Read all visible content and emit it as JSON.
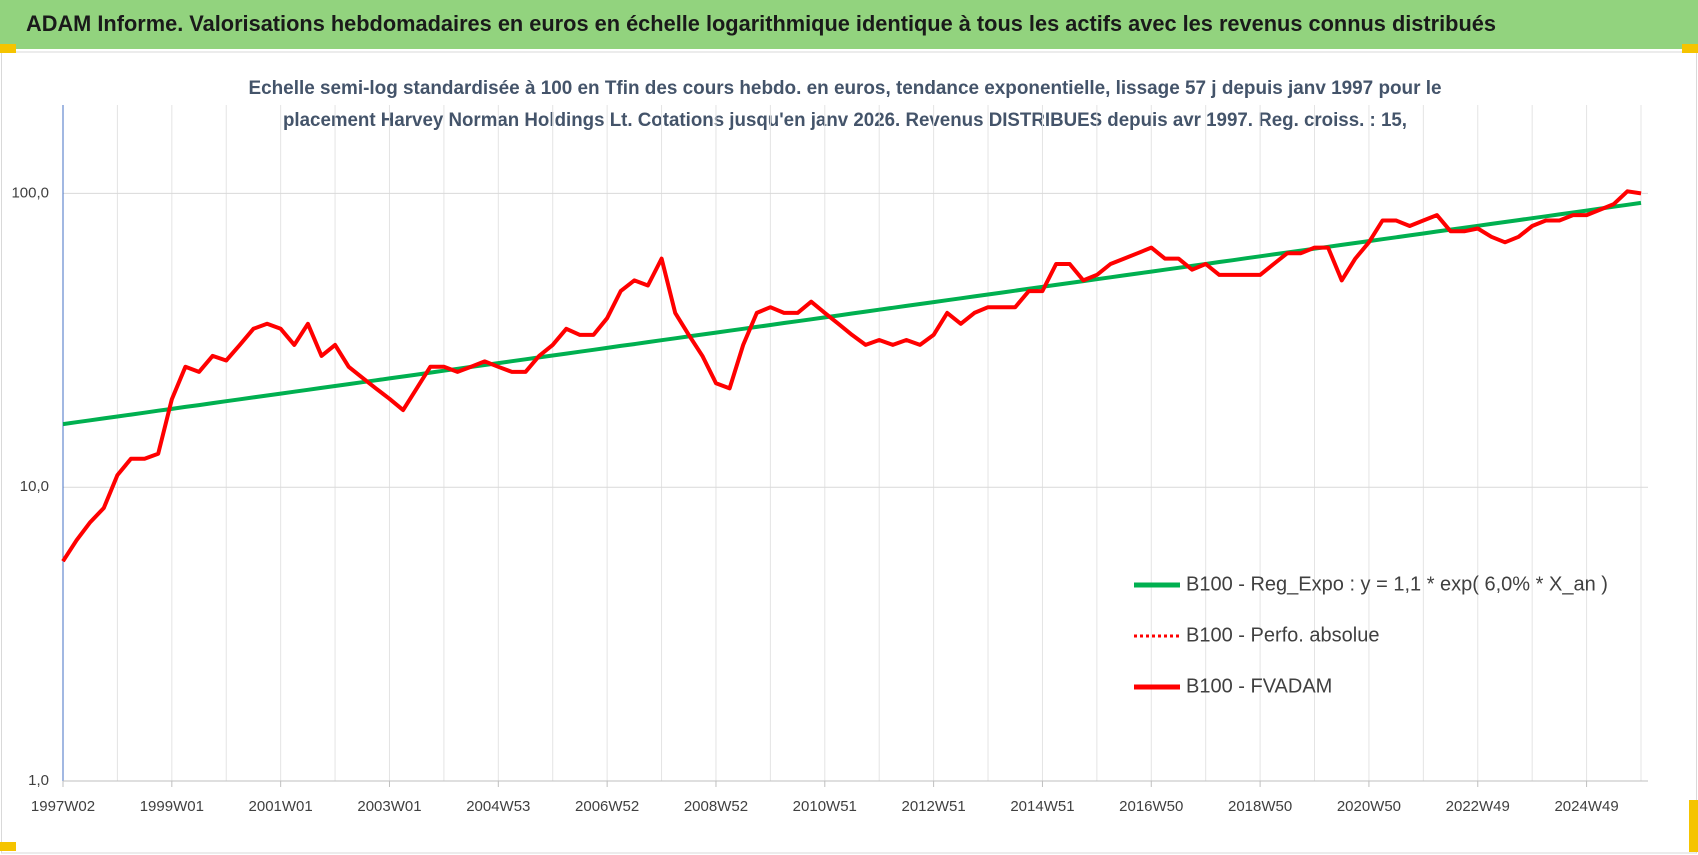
{
  "header": {
    "title": "ADAM Informe. Valorisations hebdomadaires en euros en échelle logarithmique identique à tous les actifs avec les revenus connus distribués"
  },
  "chart_data": {
    "type": "line",
    "subtitle_lines": [
      "Echelle semi-log standardisée à 100 en Tfin des cours hebdo. en euros, tendance exponentielle, lissage 57 j depuis janv 1997 pour le",
      "placement Harvey Norman Holdings Lt. Cotations jusqu'en janv 2026. Revenus DISTRIBUES depuis avr 1997. Reg. croiss. : 15,"
    ],
    "log_scale": true,
    "grid": true,
    "legend": "right",
    "ylim": [
      1,
      200
    ],
    "yticks": [
      {
        "value": 1,
        "label": "1,0"
      },
      {
        "value": 10,
        "label": "10,0"
      },
      {
        "value": 100,
        "label": "100,0"
      }
    ],
    "categories": [
      "1997W02",
      null,
      null,
      null,
      null,
      null,
      null,
      null,
      "1999W01",
      null,
      null,
      null,
      null,
      null,
      null,
      null,
      "2001W01",
      null,
      null,
      null,
      null,
      null,
      null,
      null,
      "2003W01",
      null,
      null,
      null,
      null,
      null,
      null,
      null,
      "2004W53",
      null,
      null,
      null,
      null,
      null,
      null,
      null,
      "2006W52",
      null,
      null,
      null,
      null,
      null,
      null,
      null,
      "2008W52",
      null,
      null,
      null,
      null,
      null,
      null,
      null,
      "2010W51",
      null,
      null,
      null,
      null,
      null,
      null,
      null,
      "2012W51",
      null,
      null,
      null,
      null,
      null,
      null,
      null,
      "2014W51",
      null,
      null,
      null,
      null,
      null,
      null,
      null,
      "2016W50",
      null,
      null,
      null,
      null,
      null,
      null,
      null,
      "2018W50",
      null,
      null,
      null,
      null,
      null,
      null,
      null,
      "2020W50",
      null,
      null,
      null,
      null,
      null,
      null,
      null,
      "2022W49",
      null,
      null,
      null,
      null,
      null,
      null,
      null,
      "2024W49",
      null,
      null,
      null,
      null
    ],
    "series": [
      {
        "name": "B100 - Reg_Expo : y = 1,1 * exp( 6,0% *  X_an )",
        "color": "#00b050",
        "line_style": "solid",
        "values": [
          16.4,
          16.65,
          16.9,
          17.15,
          17.41,
          17.67,
          17.94,
          18.21,
          18.48,
          18.76,
          19.04,
          19.33,
          19.62,
          19.92,
          20.21,
          20.52,
          20.83,
          21.14,
          21.46,
          21.78,
          22.11,
          22.44,
          22.78,
          23.12,
          23.47,
          23.82,
          24.18,
          24.55,
          24.92,
          25.3,
          25.68,
          26.06,
          26.45,
          26.85,
          27.25,
          27.66,
          28.08,
          28.5,
          28.93,
          29.37,
          29.81,
          30.26,
          30.71,
          31.18,
          31.65,
          32.13,
          32.61,
          33.1,
          33.6,
          34.11,
          34.62,
          35.14,
          35.67,
          36.21,
          36.75,
          37.3,
          37.86,
          38.43,
          39.01,
          39.6,
          40.2,
          40.81,
          41.42,
          42.04,
          42.67,
          43.31,
          43.96,
          44.62,
          45.3,
          45.98,
          46.67,
          47.38,
          48.09,
          48.82,
          49.55,
          50.3,
          51.05,
          51.82,
          52.6,
          53.39,
          54.2,
          55.02,
          55.84,
          56.68,
          57.54,
          58.41,
          59.28,
          60.18,
          61.08,
          62,
          62.93,
          63.88,
          64.85,
          65.83,
          66.82,
          67.82,
          68.84,
          69.88,
          70.93,
          72,
          73.08,
          74.18,
          75.3,
          76.44,
          77.58,
          78.75,
          79.93,
          81.14,
          82.36,
          83.6,
          84.86,
          86.14,
          87.44,
          88.76,
          90.1,
          91.45,
          92.82
        ]
      },
      {
        "name": "B100 - Perfo. absolue",
        "color": "#ff0000",
        "line_style": "dotted",
        "values": [
          5.6,
          6.6,
          7.6,
          8.5,
          11,
          12.5,
          12.5,
          13,
          19.9,
          25.7,
          24.7,
          28,
          27,
          30.5,
          34.6,
          36,
          34.6,
          30.5,
          36,
          28,
          30.5,
          25.7,
          23.6,
          21.7,
          20,
          18.3,
          21.7,
          25.7,
          25.7,
          24.7,
          25.7,
          26.8,
          25.7,
          24.7,
          24.7,
          28,
          30.5,
          34.6,
          33,
          33,
          37.6,
          46.5,
          50.6,
          48.6,
          60,
          39.2,
          33,
          28,
          22.6,
          21.7,
          30.5,
          39.2,
          41,
          39.2,
          39.2,
          42.8,
          39.2,
          36,
          33,
          30.5,
          31.7,
          30.5,
          31.7,
          30.5,
          33,
          39.2,
          36,
          39.2,
          41,
          41,
          41,
          46.5,
          46.5,
          57.5,
          57.5,
          50.6,
          52.8,
          57.5,
          60,
          62.6,
          65.4,
          60,
          60,
          55,
          57.5,
          52.8,
          52.8,
          52.8,
          52.8,
          57.5,
          62.6,
          62.6,
          65.4,
          65.4,
          50.6,
          60,
          68.2,
          80.9,
          80.9,
          77.5,
          80.9,
          84.4,
          74.3,
          74.3,
          76,
          71.2,
          68.2,
          71.2,
          77.5,
          80.9,
          80.9,
          84.4,
          84.4,
          88.1,
          92,
          101.7,
          100
        ]
      },
      {
        "name": "B100 - FVADAM",
        "color": "#ff0000",
        "line_style": "solid",
        "values": [
          5.6,
          6.6,
          7.6,
          8.5,
          11,
          12.5,
          12.5,
          13,
          19.9,
          25.7,
          24.7,
          28,
          27,
          30.5,
          34.6,
          36,
          34.6,
          30.5,
          36,
          28,
          30.5,
          25.7,
          23.6,
          21.7,
          20,
          18.3,
          21.7,
          25.7,
          25.7,
          24.7,
          25.7,
          26.8,
          25.7,
          24.7,
          24.7,
          28,
          30.5,
          34.6,
          33,
          33,
          37.6,
          46.5,
          50.6,
          48.6,
          60,
          39.2,
          33,
          28,
          22.6,
          21.7,
          30.5,
          39.2,
          41,
          39.2,
          39.2,
          42.8,
          39.2,
          36,
          33,
          30.5,
          31.7,
          30.5,
          31.7,
          30.5,
          33,
          39.2,
          36,
          39.2,
          41,
          41,
          41,
          46.5,
          46.5,
          57.5,
          57.5,
          50.6,
          52.8,
          57.5,
          60,
          62.6,
          65.4,
          60,
          60,
          55,
          57.5,
          52.8,
          52.8,
          52.8,
          52.8,
          57.5,
          62.6,
          62.6,
          65.4,
          65.4,
          50.6,
          60,
          68.2,
          80.9,
          80.9,
          77.5,
          80.9,
          84.4,
          74.3,
          74.3,
          76,
          71.2,
          68.2,
          71.2,
          77.5,
          80.9,
          80.9,
          84.4,
          84.4,
          88.1,
          92,
          101.7,
          100
        ]
      }
    ]
  }
}
